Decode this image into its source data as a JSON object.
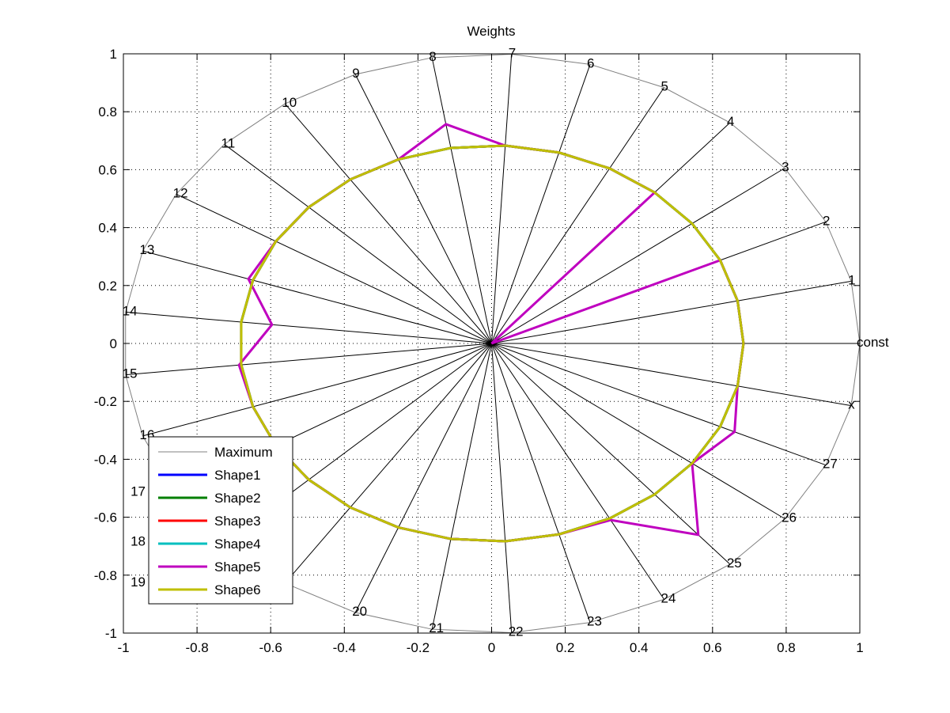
{
  "chart_data": {
    "type": "radar",
    "title": "Weights",
    "xlim": [
      -1,
      1
    ],
    "ylim": [
      -1,
      1
    ],
    "xticks": [
      "-1",
      "-0.8",
      "-0.6",
      "-0.4",
      "-0.2",
      "0",
      "0.2",
      "0.4",
      "0.6",
      "0.8",
      "1"
    ],
    "yticks": [
      "1",
      "0.8",
      "0.6",
      "0.4",
      "0.2",
      "0",
      "-0.2",
      "-0.4",
      "-0.6",
      "-0.8",
      "-1"
    ],
    "xtick_values": [
      -1,
      -0.8,
      -0.6,
      -0.4,
      -0.2,
      0,
      0.2,
      0.4,
      0.6,
      0.8,
      1
    ],
    "ytick_values": [
      1,
      0.8,
      0.6,
      0.4,
      0.2,
      0,
      -0.2,
      -0.4,
      -0.6,
      -0.8,
      -1
    ],
    "grid": true,
    "legend_placement": "bottom-left",
    "axes_labels": [
      "const",
      "1",
      "2",
      "3",
      "4",
      "5",
      "6",
      "7",
      "8",
      "9",
      "10",
      "11",
      "12",
      "13",
      "14",
      "15",
      "16",
      "17",
      "18",
      "19",
      "20",
      "21",
      "22",
      "23",
      "24",
      "25",
      "26",
      "27",
      "x"
    ],
    "series": [
      {
        "name": "Maximum",
        "color": "#808080",
        "values": [
          1,
          1,
          1,
          1,
          1,
          1,
          1,
          1,
          1,
          1,
          1,
          1,
          1,
          1,
          1,
          1,
          1,
          1,
          1,
          1,
          1,
          1,
          1,
          1,
          1,
          1,
          1,
          1,
          1
        ]
      },
      {
        "name": "Shape1",
        "color": "#0000ff",
        "values": [
          0.684,
          0.684,
          0.684,
          0.684,
          0.684,
          0.684,
          0.684,
          0.684,
          0.684,
          0.684,
          0.684,
          0.684,
          0.684,
          0.684,
          0.684,
          0.684,
          0.684,
          0.684,
          0.684,
          0.684,
          0.684,
          0.684,
          0.684,
          0.684,
          0.684,
          0.684,
          0.684,
          0.684,
          0.684
        ]
      },
      {
        "name": "Shape2",
        "color": "#007f00",
        "values": [
          0.684,
          0.684,
          0.684,
          0.684,
          0.684,
          0.684,
          0.684,
          0.684,
          0.684,
          0.684,
          0.684,
          0.684,
          0.684,
          0.684,
          0.684,
          0.684,
          0.684,
          0.684,
          0.684,
          0.684,
          0.684,
          0.684,
          0.684,
          0.684,
          0.684,
          0.684,
          0.684,
          0.684,
          0.684
        ]
      },
      {
        "name": "Shape3",
        "color": "#ff0000",
        "values": [
          0.684,
          0.684,
          0.684,
          0.684,
          0.684,
          0.684,
          0.684,
          0.684,
          0.684,
          0.684,
          0.684,
          0.684,
          0.684,
          0.684,
          0.684,
          0.684,
          0.684,
          0.684,
          0.684,
          0.684,
          0.684,
          0.684,
          0.684,
          0.684,
          0.684,
          0.684,
          0.684,
          0.684,
          0.684
        ]
      },
      {
        "name": "Shape4",
        "color": "#00bfbf",
        "values": [
          0.684,
          0.684,
          0.684,
          0.684,
          0.684,
          0.684,
          0.684,
          0.684,
          0.684,
          0.684,
          0.684,
          0.684,
          0.684,
          0.684,
          0.684,
          0.684,
          0.684,
          0.684,
          0.684,
          0.684,
          0.684,
          0.684,
          0.684,
          0.684,
          0.684,
          0.684,
          0.684,
          0.684,
          0.684
        ]
      },
      {
        "name": "Shape5",
        "color": "#bf00bf",
        "values": [
          0.684,
          0.684,
          0.684,
          0,
          0.684,
          0.684,
          0.684,
          0.684,
          0.767,
          0.684,
          0.684,
          0.684,
          0.684,
          0.697,
          0.6,
          0.69,
          0.684,
          0.684,
          0.684,
          0.684,
          0.684,
          0.684,
          0.684,
          0.684,
          0.69,
          0.867,
          0.684,
          0.727,
          0.684
        ]
      },
      {
        "name": "Shape6",
        "color": "#bfbf00",
        "values": [
          0.684,
          0.684,
          0.684,
          0.684,
          0.684,
          0.684,
          0.684,
          0.684,
          0.684,
          0.684,
          0.684,
          0.684,
          0.684,
          0.684,
          0.684,
          0.684,
          0.684,
          0.684,
          0.684,
          0.684,
          0.684,
          0.684,
          0.684,
          0.684,
          0.684,
          0.684,
          0.684,
          0.684,
          0.684
        ]
      }
    ]
  }
}
